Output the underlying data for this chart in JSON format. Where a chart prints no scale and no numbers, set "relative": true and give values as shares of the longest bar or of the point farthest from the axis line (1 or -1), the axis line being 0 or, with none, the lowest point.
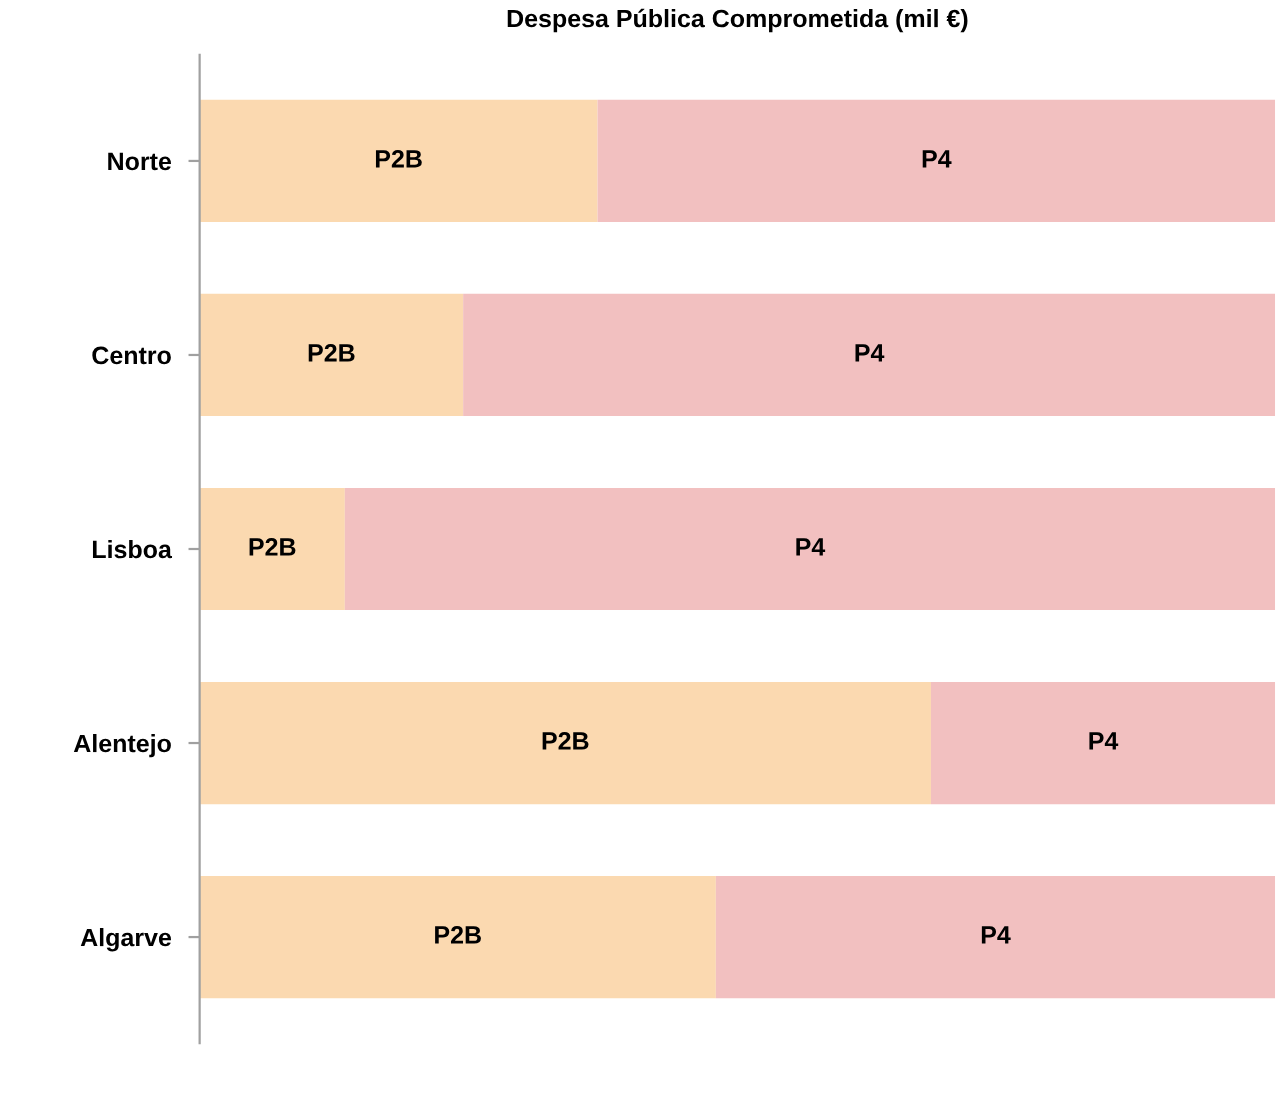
{
  "chart_data": {
    "type": "bar",
    "title": "Despesa Pública Comprometida (mil €)",
    "orientation": "horizontal",
    "stacked": true,
    "relative": true,
    "categories": [
      "Norte",
      "Centro",
      "Lisboa",
      "Alentejo",
      "Algarve"
    ],
    "series": [
      {
        "name": "P2B",
        "color": "#fbd9b0",
        "values": [
          0.37,
          0.245,
          0.135,
          0.68,
          0.48
        ]
      },
      {
        "name": "P4",
        "color": "#f2c0c0",
        "values": [
          0.63,
          0.755,
          0.865,
          0.32,
          0.52
        ]
      }
    ],
    "legend": false,
    "grid": false
  }
}
